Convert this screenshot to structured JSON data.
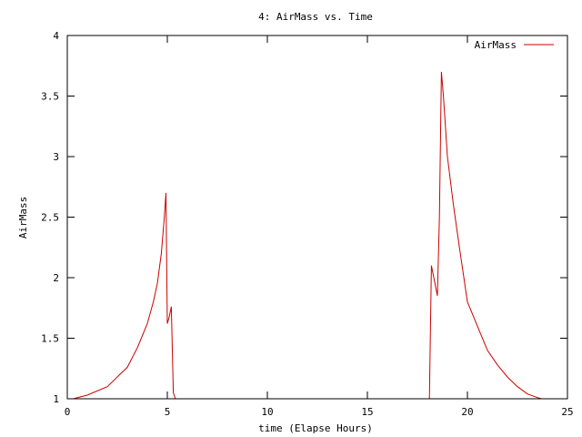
{
  "chart_data": {
    "type": "line",
    "title": "4: AirMass vs. Time",
    "xlabel": "time (Elapse Hours)",
    "ylabel": "AirMass",
    "xlim": [
      0,
      25
    ],
    "ylim": [
      1,
      4
    ],
    "xticks": [
      0,
      5,
      10,
      15,
      20,
      25
    ],
    "yticks": [
      1,
      1.5,
      2,
      2.5,
      3,
      3.5,
      4
    ],
    "grid": false,
    "legend": "top-right",
    "series": [
      {
        "name": "AirMass",
        "color": "#cc0000",
        "segments": [
          [
            [
              0.3,
              1.0
            ],
            [
              1.0,
              1.03
            ],
            [
              2.0,
              1.1
            ],
            [
              3.0,
              1.26
            ],
            [
              3.5,
              1.42
            ],
            [
              4.0,
              1.62
            ],
            [
              4.3,
              1.8
            ],
            [
              4.5,
              1.95
            ],
            [
              4.7,
              2.2
            ],
            [
              4.85,
              2.5
            ],
            [
              4.93,
              2.7
            ],
            [
              5.0,
              1.62
            ],
            [
              5.1,
              1.68
            ],
            [
              5.2,
              1.76
            ],
            [
              5.3,
              1.05
            ],
            [
              5.4,
              1.0
            ]
          ],
          [
            [
              18.1,
              1.0
            ],
            [
              18.2,
              2.1
            ],
            [
              18.5,
              1.85
            ],
            [
              18.6,
              2.5
            ],
            [
              18.7,
              3.7
            ],
            [
              18.8,
              3.5
            ],
            [
              19.0,
              3.0
            ],
            [
              19.3,
              2.6
            ],
            [
              19.6,
              2.25
            ],
            [
              20.0,
              1.8
            ],
            [
              20.5,
              1.6
            ],
            [
              21.0,
              1.4
            ],
            [
              21.5,
              1.28
            ],
            [
              22.0,
              1.18
            ],
            [
              22.5,
              1.1
            ],
            [
              23.0,
              1.04
            ],
            [
              23.5,
              1.01
            ],
            [
              23.7,
              1.0
            ]
          ]
        ]
      }
    ]
  }
}
